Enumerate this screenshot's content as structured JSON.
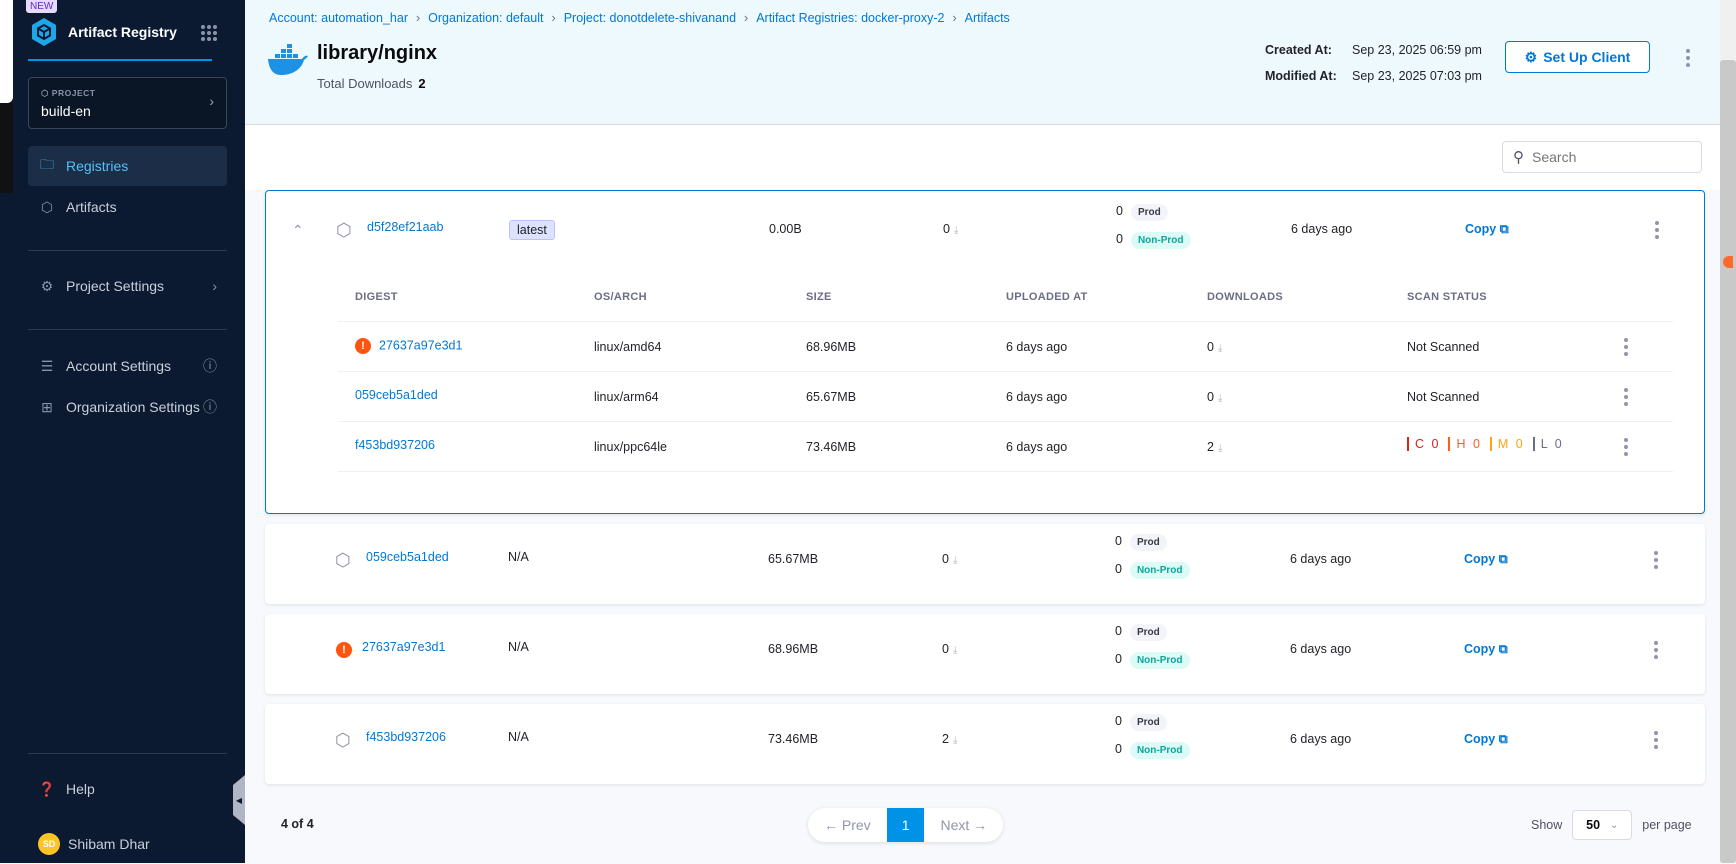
{
  "sidebar": {
    "new_badge": "NEW",
    "app_name": "Artifact Registry",
    "project_label": "PROJECT",
    "project_value": "build-en",
    "nav": [
      {
        "label": "Registries",
        "icon": "folder-icon",
        "active": true
      },
      {
        "label": "Artifacts",
        "icon": "cube-icon"
      }
    ],
    "settings": [
      {
        "label": "Project Settings",
        "icon": "gear-icon"
      },
      {
        "label": "Account Settings",
        "icon": "layers-gear-icon"
      },
      {
        "label": "Organization Settings",
        "icon": "org-gear-icon"
      }
    ],
    "help": "Help",
    "user_initials": "SD",
    "user_name": "Shibam Dhar"
  },
  "header": {
    "breadcrumbs": [
      "Account: automation_har",
      "Organization: default",
      "Project: donotdelete-shivanand",
      "Artifact Registries: docker-proxy-2",
      "Artifacts"
    ],
    "title": "library/nginx",
    "total_downloads_label": "Total Downloads",
    "total_downloads": "2",
    "created_label": "Created At:",
    "created_value": "Sep 23, 2025 06:59 pm",
    "modified_label": "Modified At:",
    "modified_value": "Sep 23, 2025 07:03 pm",
    "setup_button": "Set Up Client"
  },
  "search": {
    "placeholder": "Search"
  },
  "rows": [
    {
      "name": "d5f28ef21aab",
      "tag": "latest",
      "size": "0.00B",
      "downloads": "0",
      "prod": "0",
      "nonprod": "0",
      "prod_label": "Prod",
      "nonprod_label": "Non-Prod",
      "modified": "6 days ago",
      "copy": "Copy",
      "warning": false,
      "expanded": true
    },
    {
      "name": "059ceb5a1ded",
      "tag": "N/A",
      "size": "65.67MB",
      "downloads": "0",
      "prod": "0",
      "nonprod": "0",
      "prod_label": "Prod",
      "nonprod_label": "Non-Prod",
      "modified": "6 days ago",
      "copy": "Copy",
      "warning": false
    },
    {
      "name": "27637a97e3d1",
      "tag": "N/A",
      "size": "68.96MB",
      "downloads": "0",
      "prod": "0",
      "nonprod": "0",
      "prod_label": "Prod",
      "nonprod_label": "Non-Prod",
      "modified": "6 days ago",
      "copy": "Copy",
      "warning": true
    },
    {
      "name": "f453bd937206",
      "tag": "N/A",
      "size": "73.46MB",
      "downloads": "2",
      "prod": "0",
      "nonprod": "0",
      "prod_label": "Prod",
      "nonprod_label": "Non-Prod",
      "modified": "6 days ago",
      "copy": "Copy",
      "warning": false
    }
  ],
  "digests": {
    "headers": [
      "DIGEST",
      "OS/ARCH",
      "SIZE",
      "UPLOADED AT",
      "DOWNLOADS",
      "SCAN STATUS"
    ],
    "rows": [
      {
        "digest": "27637a97e3d1",
        "os": "linux/amd64",
        "size": "68.96MB",
        "uploaded": "6 days ago",
        "downloads": "0",
        "scan": "Not Scanned",
        "warning": true
      },
      {
        "digest": "059ceb5a1ded",
        "os": "linux/arm64",
        "size": "65.67MB",
        "uploaded": "6 days ago",
        "downloads": "0",
        "scan": "Not Scanned"
      },
      {
        "digest": "f453bd937206",
        "os": "linux/ppc64le",
        "size": "73.46MB",
        "uploaded": "6 days ago",
        "downloads": "2",
        "scan": null,
        "severity": [
          {
            "label": "C 0",
            "color": "#e0201b"
          },
          {
            "label": "H 0",
            "color": "#ff5e1a"
          },
          {
            "label": "M 0",
            "color": "#ffa30f"
          },
          {
            "label": "L 0",
            "color": "#6b6d85"
          }
        ]
      }
    ]
  },
  "pagination": {
    "count": "4 of 4",
    "prev": "← Prev",
    "page": "1",
    "next": "Next →",
    "show": "Show",
    "per_page_value": "50",
    "per_page": "per page"
  }
}
